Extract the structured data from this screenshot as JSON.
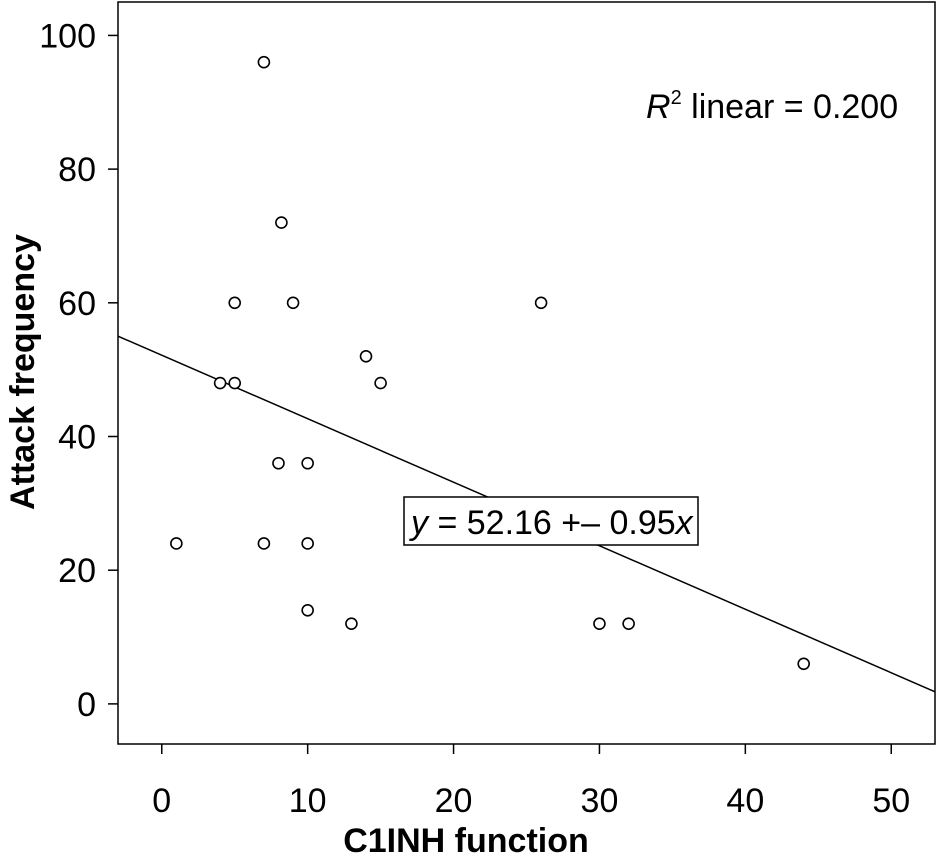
{
  "chart_data": {
    "type": "scatter",
    "xlabel": "C1INH function",
    "ylabel": "Attack frequency",
    "xlim": [
      -3,
      53
    ],
    "ylim": [
      -6,
      105
    ],
    "x_ticks": [
      "0",
      "10",
      "20",
      "30",
      "40",
      "50"
    ],
    "y_ticks": [
      "0",
      "20",
      "40",
      "60",
      "80",
      "100"
    ],
    "points": [
      {
        "x": 1,
        "y": 24
      },
      {
        "x": 4,
        "y": 48
      },
      {
        "x": 5,
        "y": 48
      },
      {
        "x": 5,
        "y": 60
      },
      {
        "x": 7,
        "y": 96
      },
      {
        "x": 7,
        "y": 24
      },
      {
        "x": 8,
        "y": 36
      },
      {
        "x": 8.2,
        "y": 72
      },
      {
        "x": 9,
        "y": 60
      },
      {
        "x": 10,
        "y": 36
      },
      {
        "x": 10,
        "y": 24
      },
      {
        "x": 10,
        "y": 14
      },
      {
        "x": 13,
        "y": 12
      },
      {
        "x": 14,
        "y": 52
      },
      {
        "x": 15,
        "y": 48
      },
      {
        "x": 26,
        "y": 60
      },
      {
        "x": 30,
        "y": 12
      },
      {
        "x": 32,
        "y": 12
      },
      {
        "x": 44,
        "y": 6
      }
    ],
    "fit_line": {
      "intercept": 52.16,
      "slope": -0.95
    },
    "r2_label": {
      "prefix": "R",
      "superscript": "2",
      "text": " linear = 0.200"
    },
    "equation_label": {
      "y": "y",
      "body": " = 52.16 +– 0.95",
      "x": "x"
    },
    "grid": false
  }
}
